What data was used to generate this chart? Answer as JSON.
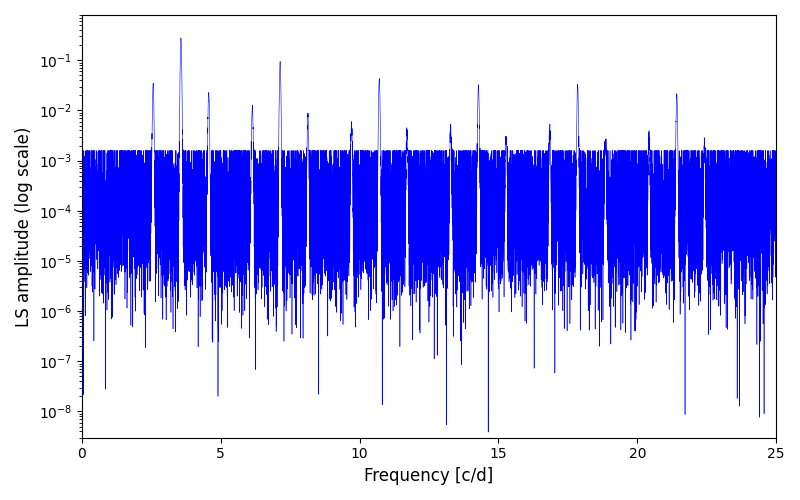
{
  "xlabel": "Frequency [c/d]",
  "ylabel": "LS amplitude (log scale)",
  "xlim": [
    0,
    25
  ],
  "ylim": [
    3e-09,
    0.8
  ],
  "line_color": "#0000ff",
  "background_color": "#ffffff",
  "freq_max": 25.0,
  "n_points": 15000,
  "base_freq": 3.57,
  "harmonics": [
    1,
    2,
    3,
    4,
    5,
    6
  ],
  "peak_amplitudes": [
    0.28,
    0.095,
    0.042,
    0.032,
    0.032,
    0.02
  ],
  "peak_widths": [
    0.018,
    0.018,
    0.018,
    0.018,
    0.018,
    0.018
  ],
  "alias_offsets": [
    -1.0,
    1.0
  ],
  "alias_scales": [
    0.12,
    0.08
  ],
  "noise_log_mean": -4.0,
  "noise_log_std": 0.8,
  "dip_log_min": -8.5,
  "seed": 42,
  "figsize": [
    8.0,
    5.0
  ],
  "dpi": 100
}
